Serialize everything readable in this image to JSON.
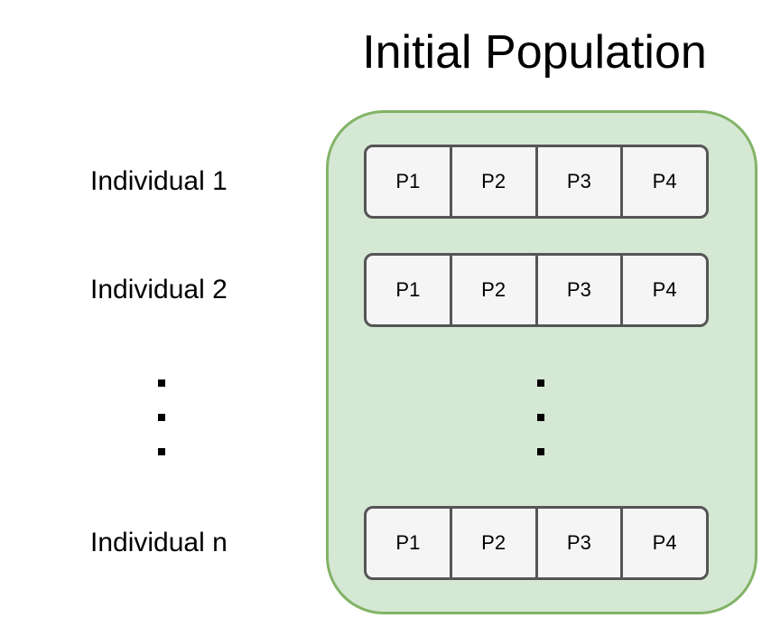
{
  "diagram": {
    "title": "Initial Population",
    "rows": [
      {
        "label": "Individual 1",
        "genes": [
          "P1",
          "P2",
          "P3",
          "P4"
        ]
      },
      {
        "label": "Individual 2",
        "genes": [
          "P1",
          "P2",
          "P3",
          "P4"
        ]
      },
      {
        "label": "Individual n",
        "genes": [
          "P1",
          "P2",
          "P3",
          "P4"
        ]
      }
    ],
    "ellipsis": "..."
  },
  "colors": {
    "container_fill": "#d5e8d4",
    "container_stroke": "#82b366",
    "gene_fill": "#f5f5f5",
    "gene_stroke": "#555555"
  }
}
